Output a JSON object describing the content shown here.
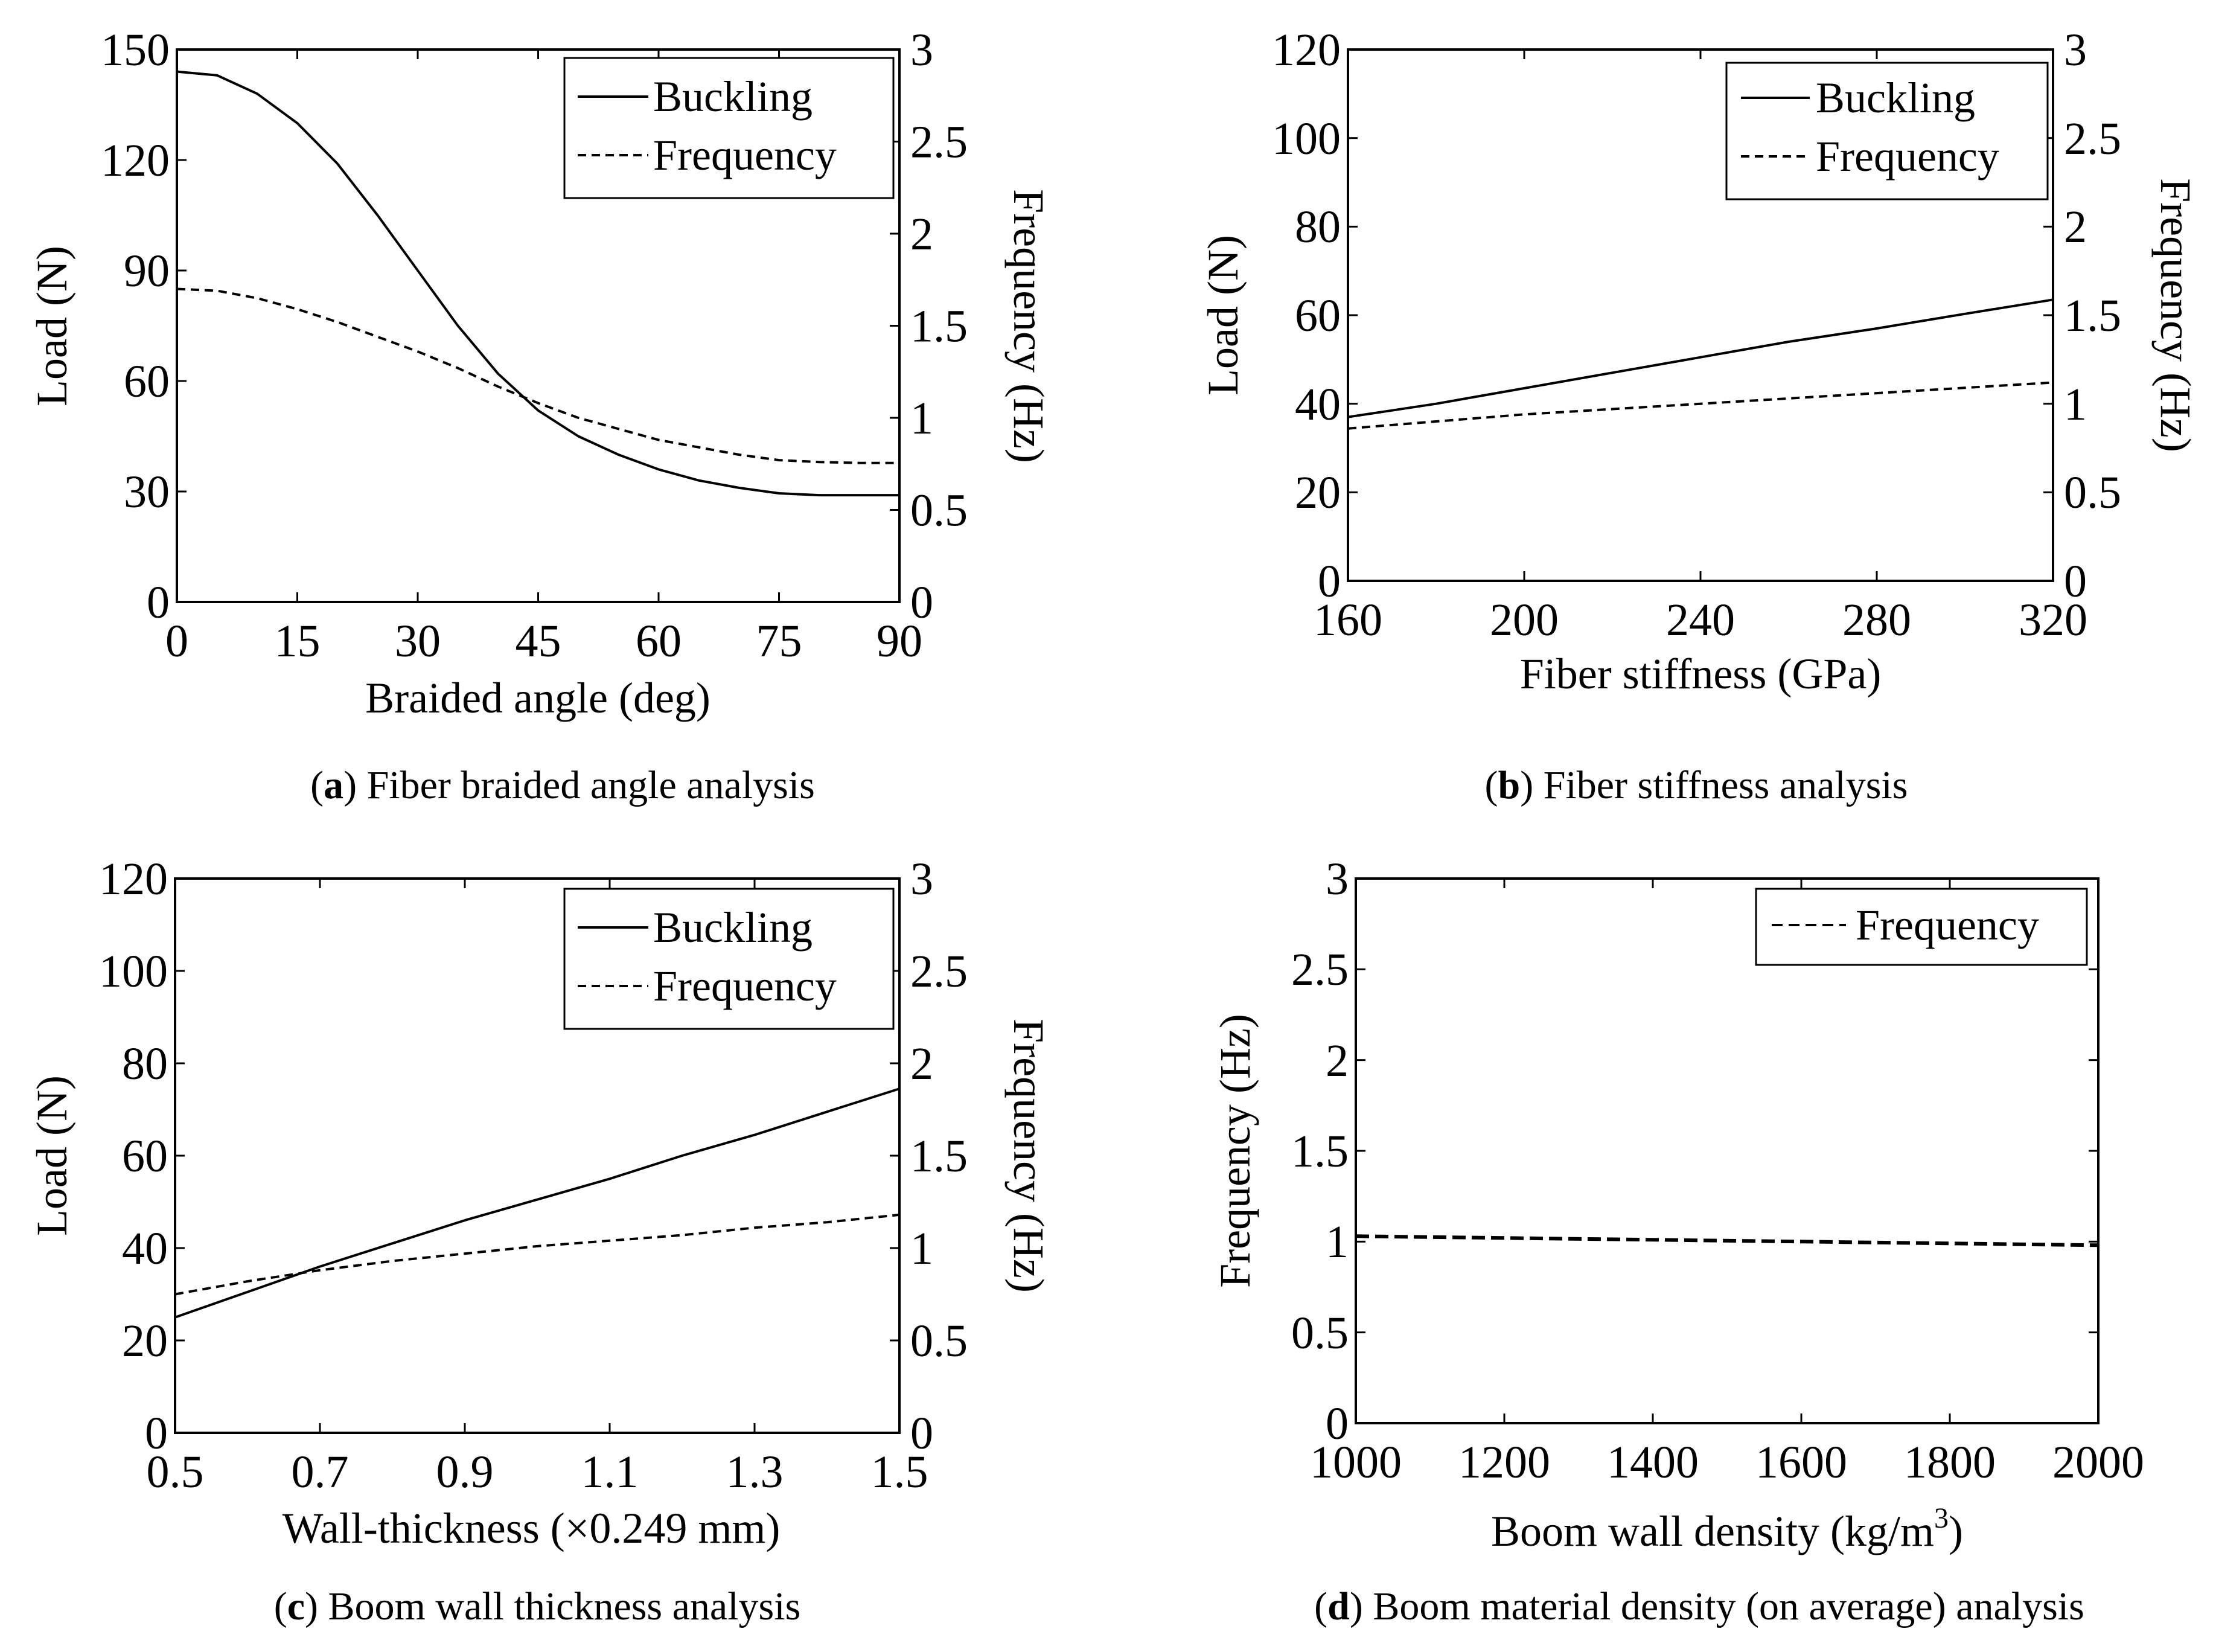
{
  "chart_data": [
    {
      "id": "a",
      "type": "line",
      "caption_letter": "a",
      "caption_open": "(",
      "caption_close": ") ",
      "caption_text": "Fiber braided angle analysis",
      "xlabel": "Braided angle (deg)",
      "ylabel_left": "Load  (N)",
      "ylabel_right": "Frequency  (Hz)",
      "xlim": [
        0,
        90
      ],
      "ylim_left": [
        0,
        150
      ],
      "ylim_right": [
        0,
        3
      ],
      "xticks": [
        "0",
        "15",
        "30",
        "45",
        "60",
        "75",
        "90"
      ],
      "yticks_left": [
        "0",
        "30",
        "60",
        "90",
        "120",
        "150"
      ],
      "yticks_right": [
        "0",
        "0.5",
        "1",
        "1.5",
        "2",
        "2.5",
        "3"
      ],
      "legend_position": "top-right",
      "series": [
        {
          "name": "Buckling",
          "axis": "left",
          "style": "solid",
          "x": [
            0,
            5,
            10,
            15,
            20,
            25,
            30,
            35,
            40,
            45,
            50,
            55,
            60,
            65,
            70,
            75,
            80,
            85,
            90
          ],
          "y": [
            144,
            143,
            138,
            130,
            119,
            105,
            90,
            75,
            62,
            52,
            45,
            40,
            36,
            33,
            31,
            29.5,
            29,
            29,
            29
          ]
        },
        {
          "name": "Frequency",
          "axis": "right",
          "style": "dashed",
          "x": [
            0,
            5,
            10,
            15,
            20,
            25,
            30,
            35,
            40,
            45,
            50,
            55,
            60,
            65,
            70,
            75,
            80,
            85,
            90
          ],
          "y": [
            1.7,
            1.69,
            1.65,
            1.59,
            1.52,
            1.44,
            1.36,
            1.27,
            1.17,
            1.08,
            1.0,
            0.94,
            0.88,
            0.84,
            0.8,
            0.77,
            0.76,
            0.755,
            0.755
          ]
        }
      ]
    },
    {
      "id": "b",
      "type": "line",
      "caption_letter": "b",
      "caption_open": "(",
      "caption_close": ") ",
      "caption_text": "Fiber stiffness analysis",
      "xlabel": "Fiber stiffness (GPa)",
      "ylabel_left": "Load  (N)",
      "ylabel_right": "Frequency  (Hz)",
      "xlim": [
        160,
        320
      ],
      "ylim_left": [
        0,
        120
      ],
      "ylim_right": [
        0,
        3
      ],
      "xticks": [
        "160",
        "200",
        "240",
        "280",
        "320"
      ],
      "yticks_left": [
        "0",
        "20",
        "40",
        "60",
        "80",
        "100",
        "120"
      ],
      "yticks_right": [
        "0",
        "0.5",
        "1",
        "1.5",
        "2",
        "2.5",
        "3"
      ],
      "legend_position": "top-right",
      "series": [
        {
          "name": "Buckling",
          "axis": "left",
          "style": "solid",
          "x": [
            160,
            180,
            200,
            220,
            240,
            260,
            280,
            300,
            320
          ],
          "y": [
            37,
            40,
            43.5,
            47,
            50.5,
            54,
            57,
            60.3,
            63.5
          ]
        },
        {
          "name": "Frequency",
          "axis": "right",
          "style": "dashed",
          "x": [
            160,
            180,
            200,
            220,
            240,
            260,
            280,
            300,
            320
          ],
          "y": [
            0.86,
            0.9,
            0.94,
            0.97,
            1.0,
            1.03,
            1.06,
            1.09,
            1.12
          ]
        }
      ]
    },
    {
      "id": "c",
      "type": "line",
      "caption_letter": "c",
      "caption_open": "(",
      "caption_close": ") ",
      "caption_text": "Boom wall thickness analysis",
      "xlabel": "Wall-thickness (×0.249 mm)",
      "ylabel_left": "Load  (N)",
      "ylabel_right": "Frequency  (Hz)",
      "xlim": [
        0.5,
        1.5
      ],
      "ylim_left": [
        0,
        120
      ],
      "ylim_right": [
        0,
        3
      ],
      "xticks": [
        "0.5",
        "0.7",
        "0.9",
        "1.1",
        "1.3",
        "1.5"
      ],
      "yticks_left": [
        "0",
        "20",
        "40",
        "60",
        "80",
        "100",
        "120"
      ],
      "yticks_right": [
        "0",
        "0.5",
        "1",
        "1.5",
        "2",
        "2.5",
        "3"
      ],
      "legend_position": "top-right",
      "series": [
        {
          "name": "Buckling",
          "axis": "left",
          "style": "solid",
          "x": [
            0.5,
            0.6,
            0.7,
            0.8,
            0.9,
            1.0,
            1.1,
            1.2,
            1.3,
            1.4,
            1.5
          ],
          "y": [
            25,
            30.5,
            36,
            41,
            46,
            50.5,
            55,
            60,
            64.5,
            69.5,
            74.5
          ]
        },
        {
          "name": "Frequency",
          "axis": "right",
          "style": "dashed",
          "x": [
            0.5,
            0.6,
            0.7,
            0.8,
            0.9,
            1.0,
            1.1,
            1.2,
            1.3,
            1.4,
            1.5
          ],
          "y": [
            0.75,
            0.82,
            0.88,
            0.93,
            0.97,
            1.01,
            1.04,
            1.07,
            1.11,
            1.14,
            1.18
          ]
        }
      ]
    },
    {
      "id": "d",
      "type": "line",
      "caption_letter": "d",
      "caption_open": "(",
      "caption_close": ") ",
      "caption_text": "Boom material density (on average) analysis",
      "xlabel": "Boom wall density (kg/m",
      "xlabel_sup": "3",
      "xlabel_end": ")",
      "ylabel_left": "Frequency (Hz)",
      "xlim": [
        1000,
        2000
      ],
      "ylim_left": [
        0,
        3
      ],
      "xticks": [
        "1000",
        "1200",
        "1400",
        "1600",
        "1800",
        "2000"
      ],
      "yticks_left": [
        "0",
        "0.5",
        "1",
        "1.5",
        "2",
        "2.5",
        "3"
      ],
      "legend_position": "top-right",
      "series": [
        {
          "name": "Frequency",
          "axis": "left",
          "style": "dashed",
          "x": [
            1000,
            1200,
            1400,
            1600,
            1800,
            2000
          ],
          "y": [
            1.03,
            1.02,
            1.01,
            1.0,
            0.99,
            0.98
          ]
        }
      ]
    }
  ]
}
